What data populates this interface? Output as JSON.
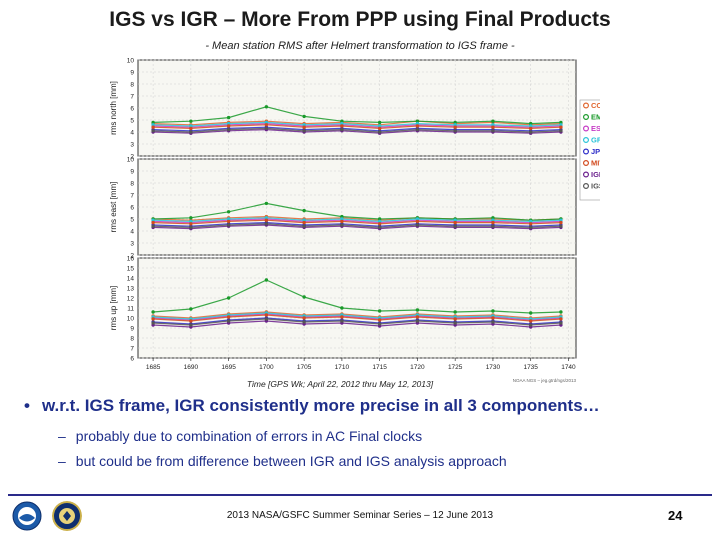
{
  "title": "IGS vs IGR – More From PPP using Final Products",
  "subtitle": "- Mean station RMS after Helmert transformation to IGS frame -",
  "chart_data": {
    "type": "scatter",
    "x_range": [
      1683,
      1741
    ],
    "x_ticks": [
      1685,
      1690,
      1695,
      1700,
      1705,
      1710,
      1715,
      1720,
      1725,
      1730,
      1735,
      1740
    ],
    "xlabel": "Time [GPS Wk; April 22, 2012 thru May 12, 2013]",
    "credit": "NOAA NGS – jeg.gtrd/ngs/2013",
    "legend": [
      "COD",
      "EMR",
      "ESA",
      "GFZ",
      "JPL",
      "MIT",
      "IGR",
      "IGS"
    ],
    "legend_colors": [
      "#e0662f",
      "#1a9a2a",
      "#c63bc6",
      "#29c3d8",
      "#2d2dc9",
      "#d24a1e",
      "#6a1f8c",
      "#555555"
    ],
    "panels": [
      {
        "ylabel": "rms north [mm]",
        "y_range": [
          2,
          10
        ],
        "y_ticks": [
          2,
          3,
          4,
          5,
          6,
          7,
          8,
          9,
          10
        ],
        "series": [
          {
            "name": "COD",
            "values": [
              4.7,
              4.6,
              4.8,
              4.9,
              4.7,
              4.8,
              4.6,
              4.9,
              4.7,
              4.8,
              4.6,
              4.7
            ]
          },
          {
            "name": "EMR",
            "values": [
              4.8,
              4.9,
              5.2,
              6.1,
              5.3,
              4.9,
              4.8,
              4.9,
              4.8,
              4.9,
              4.7,
              4.8
            ]
          },
          {
            "name": "ESA",
            "values": [
              4.5,
              4.4,
              4.6,
              4.7,
              4.5,
              4.6,
              4.4,
              4.6,
              4.5,
              4.5,
              4.4,
              4.5
            ]
          },
          {
            "name": "GFZ",
            "values": [
              4.6,
              4.5,
              4.7,
              4.8,
              4.6,
              4.7,
              4.5,
              4.7,
              4.6,
              4.6,
              4.5,
              4.6
            ]
          },
          {
            "name": "JPL",
            "values": [
              4.2,
              4.1,
              4.3,
              4.4,
              4.2,
              4.3,
              4.1,
              4.3,
              4.2,
              4.2,
              4.1,
              4.2
            ]
          },
          {
            "name": "MIT",
            "values": [
              4.4,
              4.3,
              4.5,
              4.6,
              4.4,
              4.5,
              4.3,
              4.5,
              4.4,
              4.4,
              4.3,
              4.4
            ]
          },
          {
            "name": "IGR",
            "values": [
              4.0,
              3.9,
              4.1,
              4.2,
              4.0,
              4.1,
              3.9,
              4.1,
              4.0,
              4.0,
              3.9,
              4.0
            ]
          },
          {
            "name": "IGS",
            "values": [
              4.1,
              4.0,
              4.2,
              4.3,
              4.1,
              4.2,
              4.0,
              4.2,
              4.1,
              4.1,
              4.0,
              4.1
            ]
          }
        ]
      },
      {
        "ylabel": "rms east [mm]",
        "y_range": [
          2,
          10
        ],
        "y_ticks": [
          2,
          3,
          4,
          5,
          6,
          7,
          8,
          9,
          10
        ],
        "series": [
          {
            "name": "COD",
            "values": [
              5.0,
              4.9,
              5.1,
              5.2,
              5.0,
              5.1,
              4.9,
              5.1,
              5.0,
              5.0,
              4.9,
              5.0
            ]
          },
          {
            "name": "EMR",
            "values": [
              5.0,
              5.1,
              5.6,
              6.3,
              5.7,
              5.2,
              5.0,
              5.1,
              5.0,
              5.1,
              4.9,
              5.0
            ]
          },
          {
            "name": "ESA",
            "values": [
              4.8,
              4.7,
              4.9,
              5.0,
              4.8,
              4.9,
              4.7,
              4.9,
              4.8,
              4.8,
              4.7,
              4.8
            ]
          },
          {
            "name": "GFZ",
            "values": [
              4.9,
              4.8,
              5.0,
              5.1,
              4.9,
              5.0,
              4.8,
              5.0,
              4.9,
              4.9,
              4.8,
              4.9
            ]
          },
          {
            "name": "JPL",
            "values": [
              4.5,
              4.4,
              4.6,
              4.7,
              4.5,
              4.6,
              4.4,
              4.6,
              4.5,
              4.5,
              4.4,
              4.5
            ]
          },
          {
            "name": "MIT",
            "values": [
              4.7,
              4.6,
              4.8,
              4.9,
              4.7,
              4.8,
              4.6,
              4.8,
              4.7,
              4.7,
              4.6,
              4.7
            ]
          },
          {
            "name": "IGR",
            "values": [
              4.3,
              4.2,
              4.4,
              4.5,
              4.3,
              4.4,
              4.2,
              4.4,
              4.3,
              4.3,
              4.2,
              4.3
            ]
          },
          {
            "name": "IGS",
            "values": [
              4.4,
              4.3,
              4.5,
              4.6,
              4.4,
              4.5,
              4.3,
              4.5,
              4.4,
              4.4,
              4.3,
              4.4
            ]
          }
        ]
      },
      {
        "ylabel": "rms up [mm]",
        "y_range": [
          6,
          16
        ],
        "y_ticks": [
          6,
          7,
          8,
          9,
          10,
          11,
          12,
          13,
          14,
          15,
          16
        ],
        "series": [
          {
            "name": "COD",
            "values": [
              10.2,
              10.0,
              10.4,
              10.6,
              10.3,
              10.4,
              10.1,
              10.4,
              10.2,
              10.3,
              10.0,
              10.2
            ]
          },
          {
            "name": "EMR",
            "values": [
              10.6,
              10.9,
              12.0,
              13.8,
              12.1,
              11.0,
              10.7,
              10.8,
              10.6,
              10.7,
              10.5,
              10.6
            ]
          },
          {
            "name": "ESA",
            "values": [
              10.0,
              9.8,
              10.2,
              10.4,
              10.1,
              10.2,
              9.9,
              10.2,
              10.0,
              10.1,
              9.8,
              10.0
            ]
          },
          {
            "name": "GFZ",
            "values": [
              10.1,
              9.9,
              10.3,
              10.5,
              10.2,
              10.3,
              10.0,
              10.3,
              10.1,
              10.2,
              9.9,
              10.1
            ]
          },
          {
            "name": "JPL",
            "values": [
              9.6,
              9.4,
              9.8,
              10.0,
              9.7,
              9.8,
              9.5,
              9.8,
              9.6,
              9.7,
              9.4,
              9.6
            ]
          },
          {
            "name": "MIT",
            "values": [
              9.9,
              9.7,
              10.1,
              10.3,
              10.0,
              10.1,
              9.8,
              10.1,
              9.9,
              10.0,
              9.7,
              9.9
            ]
          },
          {
            "name": "IGR",
            "values": [
              9.3,
              9.1,
              9.5,
              9.7,
              9.4,
              9.5,
              9.2,
              9.5,
              9.3,
              9.4,
              9.1,
              9.3
            ]
          },
          {
            "name": "IGS",
            "values": [
              9.5,
              9.3,
              9.7,
              9.9,
              9.6,
              9.7,
              9.4,
              9.7,
              9.5,
              9.6,
              9.3,
              9.5
            ]
          }
        ]
      }
    ],
    "sample_weeks": [
      1685,
      1690,
      1695,
      1700,
      1705,
      1710,
      1715,
      1720,
      1725,
      1730,
      1735,
      1739
    ]
  },
  "bullet": {
    "marker": "•",
    "text": "w.r.t. IGS frame, IGR consistently more precise in all 3 components…"
  },
  "subpoints": [
    {
      "marker": "–",
      "text": "probably due to combination of errors in AC Final clocks"
    },
    {
      "marker": "–",
      "text": "but could be from difference between IGR and IGS analysis approach"
    }
  ],
  "footer": {
    "text": "2013 NASA/GSFC Summer Seminar Series – 12 June 2013",
    "page": "24"
  }
}
